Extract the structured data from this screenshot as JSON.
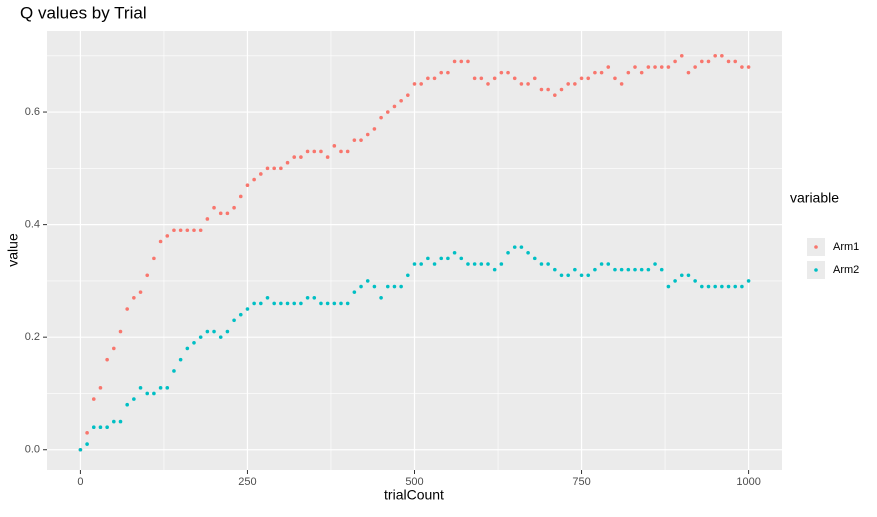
{
  "chart_data": {
    "type": "scatter",
    "title": "Q values by Trial",
    "x_label": "trialCount",
    "y_label": "value",
    "legend_title": "variable",
    "x": [
      0,
      10,
      20,
      30,
      40,
      50,
      60,
      70,
      80,
      90,
      100,
      110,
      120,
      130,
      140,
      150,
      160,
      170,
      180,
      190,
      200,
      210,
      220,
      230,
      240,
      250,
      260,
      270,
      280,
      290,
      300,
      310,
      320,
      330,
      340,
      350,
      360,
      370,
      380,
      390,
      400,
      410,
      420,
      430,
      440,
      450,
      460,
      470,
      480,
      490,
      500,
      510,
      520,
      530,
      540,
      550,
      560,
      570,
      580,
      590,
      600,
      610,
      620,
      630,
      640,
      650,
      660,
      670,
      680,
      690,
      700,
      710,
      720,
      730,
      740,
      750,
      760,
      770,
      780,
      790,
      800,
      810,
      820,
      830,
      840,
      850,
      860,
      870,
      880,
      890,
      900,
      910,
      920,
      930,
      940,
      950,
      960,
      970,
      980,
      990,
      1000
    ],
    "series": [
      {
        "name": "Arm1",
        "color": "#f8766d",
        "values": [
          0,
          0.03,
          0.09,
          0.11,
          0.16,
          0.18,
          0.21,
          0.25,
          0.27,
          0.28,
          0.31,
          0.34,
          0.37,
          0.38,
          0.39,
          0.39,
          0.39,
          0.39,
          0.39,
          0.41,
          0.43,
          0.42,
          0.42,
          0.43,
          0.45,
          0.47,
          0.48,
          0.49,
          0.5,
          0.5,
          0.5,
          0.51,
          0.52,
          0.52,
          0.53,
          0.53,
          0.53,
          0.52,
          0.54,
          0.53,
          0.53,
          0.55,
          0.55,
          0.56,
          0.57,
          0.59,
          0.6,
          0.61,
          0.62,
          0.63,
          0.65,
          0.65,
          0.66,
          0.66,
          0.67,
          0.67,
          0.69,
          0.69,
          0.69,
          0.66,
          0.66,
          0.65,
          0.66,
          0.67,
          0.67,
          0.66,
          0.65,
          0.65,
          0.66,
          0.64,
          0.64,
          0.63,
          0.64,
          0.65,
          0.65,
          0.66,
          0.66,
          0.67,
          0.67,
          0.68,
          0.66,
          0.65,
          0.67,
          0.68,
          0.67,
          0.68,
          0.68,
          0.68,
          0.68,
          0.69,
          0.7,
          0.67,
          0.68,
          0.69,
          0.69,
          0.7,
          0.7,
          0.69,
          0.69,
          0.68,
          0.68
        ]
      },
      {
        "name": "Arm2",
        "color": "#00bfc4",
        "values": [
          0,
          0.01,
          0.04,
          0.04,
          0.04,
          0.05,
          0.05,
          0.08,
          0.09,
          0.11,
          0.1,
          0.1,
          0.11,
          0.11,
          0.14,
          0.16,
          0.18,
          0.19,
          0.2,
          0.21,
          0.21,
          0.2,
          0.21,
          0.23,
          0.24,
          0.25,
          0.26,
          0.26,
          0.27,
          0.26,
          0.26,
          0.26,
          0.26,
          0.26,
          0.27,
          0.27,
          0.26,
          0.26,
          0.26,
          0.26,
          0.26,
          0.28,
          0.29,
          0.3,
          0.29,
          0.27,
          0.29,
          0.29,
          0.29,
          0.31,
          0.33,
          0.33,
          0.34,
          0.33,
          0.34,
          0.34,
          0.35,
          0.34,
          0.33,
          0.33,
          0.33,
          0.33,
          0.32,
          0.33,
          0.35,
          0.36,
          0.36,
          0.35,
          0.34,
          0.33,
          0.33,
          0.32,
          0.31,
          0.31,
          0.32,
          0.31,
          0.31,
          0.32,
          0.33,
          0.33,
          0.32,
          0.32,
          0.32,
          0.32,
          0.32,
          0.32,
          0.33,
          0.32,
          0.29,
          0.3,
          0.31,
          0.31,
          0.3,
          0.29,
          0.29,
          0.29,
          0.29,
          0.29,
          0.29,
          0.29,
          0.3
        ]
      }
    ],
    "xlim": [
      -50,
      1050
    ],
    "ylim": [
      -0.036,
      0.744
    ],
    "xticks": [
      0,
      250,
      500,
      750,
      1000
    ],
    "yticks": [
      {
        "value": 0,
        "label": "0.0"
      },
      0.2,
      0.4,
      0.6
    ],
    "minor_xticks": [
      125,
      375,
      625,
      875
    ],
    "minor_yticks": [
      0.1,
      0.3,
      0.5,
      0.7
    ],
    "grid": true
  }
}
